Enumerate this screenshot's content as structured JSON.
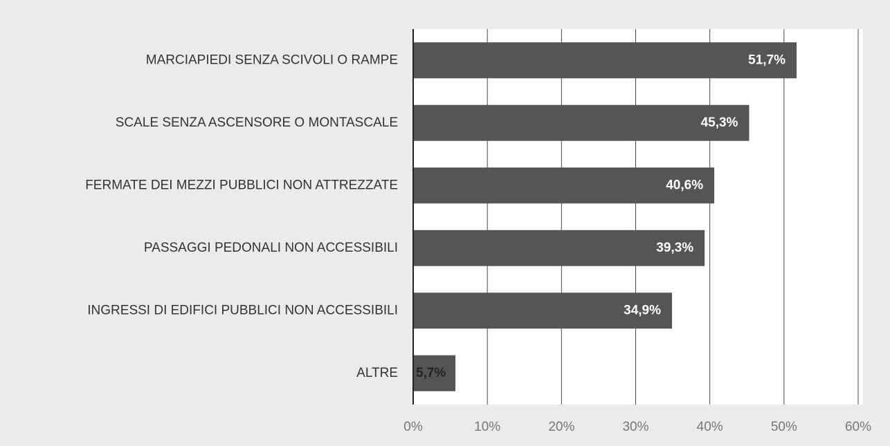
{
  "chart_data": {
    "type": "barh",
    "categories": [
      "MARCIAPIEDI SENZA SCIVOLI O RAMPE",
      "SCALE SENZA ASCENSORE O MONTASCALE",
      "FERMATE DEI MEZZI PUBBLICI NON ATTREZZATE",
      "PASSAGGI PEDONALI NON ACCESSIBILI",
      "INGRESSI DI EDIFICI PUBBLICI NON ACCESSIBILI",
      "ALTRE"
    ],
    "values": [
      51.7,
      45.3,
      40.6,
      39.3,
      34.9,
      5.7
    ],
    "value_labels": [
      "51,7%",
      "45,3%",
      "40,6%",
      "39,3%",
      "34,9%",
      "5,7%"
    ],
    "color": "#555555",
    "xlim": [
      0,
      60
    ],
    "xticks": [
      {
        "value": 0,
        "label": "0%"
      },
      {
        "value": 10,
        "label": "10%"
      },
      {
        "value": 20,
        "label": "20%"
      },
      {
        "value": 30,
        "label": "30%"
      },
      {
        "value": 40,
        "label": "40%"
      },
      {
        "value": 50,
        "label": "50%"
      },
      {
        "value": 60,
        "label": "60%"
      }
    ],
    "grid": true
  }
}
